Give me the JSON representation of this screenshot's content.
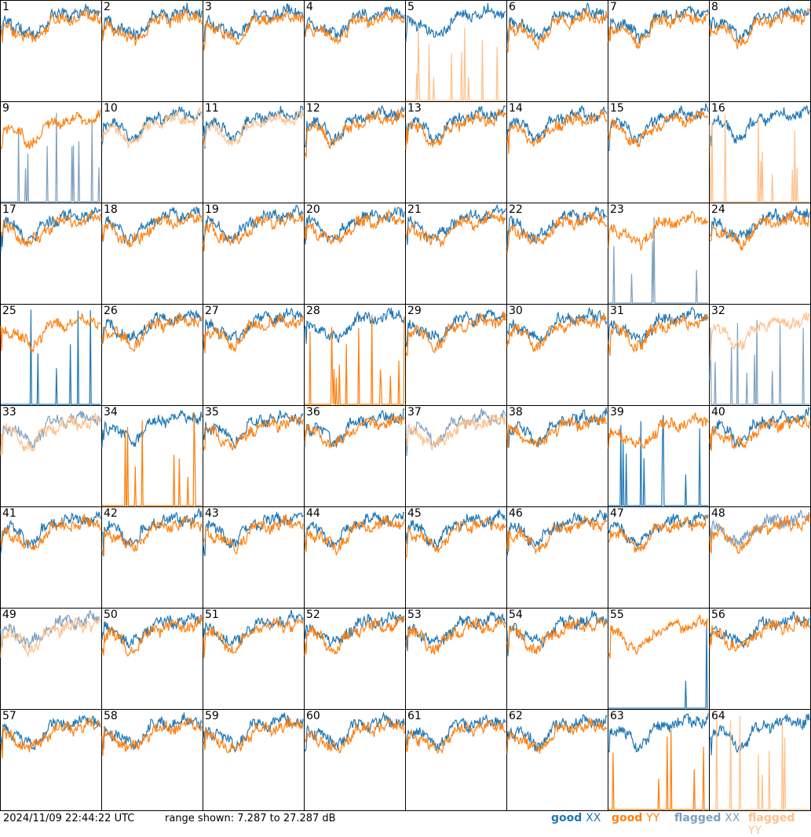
{
  "colors": {
    "good_xx": "#1f77b4",
    "good_yy": "#ff7f0e",
    "flagged_xx": "#7fa0bf",
    "flagged_yy": "#ffc08a"
  },
  "footer": {
    "timestamp": "2024/11/09 22:44:22 UTC",
    "range": "range shown: 7.287 to 27.287 dB"
  },
  "legend": [
    {
      "word": "good",
      "pol": "XX",
      "color": "#1f77b4"
    },
    {
      "word": "good",
      "pol": "YY",
      "color": "#ff7f0e"
    },
    {
      "word": "flagged",
      "pol": "XX",
      "color": "#7fa0bf"
    },
    {
      "word": "flagged",
      "pol": "YY",
      "color": "#ffc08a"
    }
  ],
  "chart_data": {
    "type": "line",
    "grid": {
      "rows": 8,
      "cols": 8
    },
    "ylim_db": [
      7.287,
      27.287
    ],
    "panels": [
      {
        "label": "1",
        "xx": "good",
        "yy": "good"
      },
      {
        "label": "2",
        "xx": "good",
        "yy": "good"
      },
      {
        "label": "3",
        "xx": "good",
        "yy": "good"
      },
      {
        "label": "4",
        "xx": "good",
        "yy": "good"
      },
      {
        "label": "5",
        "xx": "good",
        "yy": "flagged"
      },
      {
        "label": "6",
        "xx": "good",
        "yy": "good"
      },
      {
        "label": "7",
        "xx": "good",
        "yy": "good"
      },
      {
        "label": "8",
        "xx": "good",
        "yy": "good"
      },
      {
        "label": "9",
        "xx": "flagged",
        "yy": "good"
      },
      {
        "label": "10",
        "xx": "good",
        "yy": "flagged"
      },
      {
        "label": "11",
        "xx": "good",
        "yy": "flagged"
      },
      {
        "label": "12",
        "xx": "good",
        "yy": "good"
      },
      {
        "label": "13",
        "xx": "good",
        "yy": "good"
      },
      {
        "label": "14",
        "xx": "good",
        "yy": "good"
      },
      {
        "label": "15",
        "xx": "good",
        "yy": "good"
      },
      {
        "label": "16",
        "xx": "good",
        "yy": "flagged"
      },
      {
        "label": "17",
        "xx": "good",
        "yy": "good"
      },
      {
        "label": "18",
        "xx": "good",
        "yy": "good"
      },
      {
        "label": "19",
        "xx": "good",
        "yy": "good"
      },
      {
        "label": "20",
        "xx": "good",
        "yy": "good"
      },
      {
        "label": "21",
        "xx": "good",
        "yy": "good"
      },
      {
        "label": "22",
        "xx": "good",
        "yy": "good"
      },
      {
        "label": "23",
        "xx": "flagged",
        "yy": "good"
      },
      {
        "label": "24",
        "xx": "good",
        "yy": "good"
      },
      {
        "label": "25",
        "xx": "good",
        "yy": "good"
      },
      {
        "label": "26",
        "xx": "good",
        "yy": "good"
      },
      {
        "label": "27",
        "xx": "good",
        "yy": "good"
      },
      {
        "label": "28",
        "xx": "good",
        "yy": "good"
      },
      {
        "label": "29",
        "xx": "good",
        "yy": "good"
      },
      {
        "label": "30",
        "xx": "good",
        "yy": "good"
      },
      {
        "label": "31",
        "xx": "good",
        "yy": "good"
      },
      {
        "label": "32",
        "xx": "flagged",
        "yy": "flagged"
      },
      {
        "label": "33",
        "xx": "flagged",
        "yy": "flagged"
      },
      {
        "label": "34",
        "xx": "good",
        "yy": "good"
      },
      {
        "label": "35",
        "xx": "good",
        "yy": "good"
      },
      {
        "label": "36",
        "xx": "good",
        "yy": "good"
      },
      {
        "label": "37",
        "xx": "flagged",
        "yy": "flagged"
      },
      {
        "label": "38",
        "xx": "good",
        "yy": "good"
      },
      {
        "label": "39",
        "xx": "good",
        "yy": "good"
      },
      {
        "label": "40",
        "xx": "good",
        "yy": "good"
      },
      {
        "label": "41",
        "xx": "good",
        "yy": "good"
      },
      {
        "label": "42",
        "xx": "good",
        "yy": "good"
      },
      {
        "label": "43",
        "xx": "good",
        "yy": "good"
      },
      {
        "label": "44",
        "xx": "good",
        "yy": "good"
      },
      {
        "label": "45",
        "xx": "good",
        "yy": "good"
      },
      {
        "label": "46",
        "xx": "good",
        "yy": "good"
      },
      {
        "label": "47",
        "xx": "good",
        "yy": "good"
      },
      {
        "label": "48",
        "xx": "flagged",
        "yy": "good"
      },
      {
        "label": "49",
        "xx": "flagged",
        "yy": "flagged"
      },
      {
        "label": "50",
        "xx": "good",
        "yy": "good"
      },
      {
        "label": "51",
        "xx": "good",
        "yy": "good"
      },
      {
        "label": "52",
        "xx": "good",
        "yy": "good"
      },
      {
        "label": "53",
        "xx": "good",
        "yy": "good"
      },
      {
        "label": "54",
        "xx": "good",
        "yy": "good"
      },
      {
        "label": "55",
        "xx": "good",
        "yy": "good"
      },
      {
        "label": "56",
        "xx": "good",
        "yy": "good"
      },
      {
        "label": "57",
        "xx": "good",
        "yy": "good"
      },
      {
        "label": "58",
        "xx": "good",
        "yy": "good"
      },
      {
        "label": "59",
        "xx": "good",
        "yy": "good"
      },
      {
        "label": "60",
        "xx": "good",
        "yy": "good"
      },
      {
        "label": "61",
        "xx": "good",
        "yy": "good"
      },
      {
        "label": "62",
        "xx": "good",
        "yy": "good"
      },
      {
        "label": "63",
        "xx": "good",
        "yy": "good"
      },
      {
        "label": "64",
        "xx": "good",
        "yy": "flagged"
      }
    ]
  }
}
